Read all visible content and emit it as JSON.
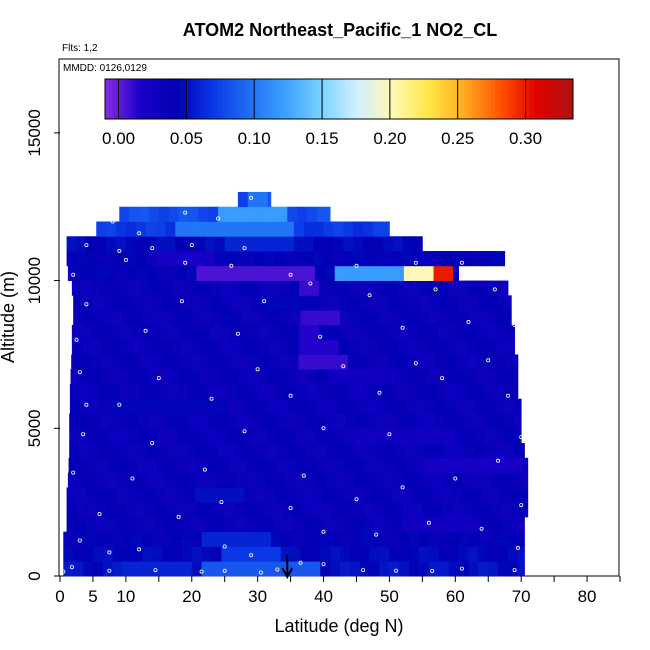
{
  "chart_data": {
    "type": "heatmap",
    "title": "ATOM2 Northeast_Pacific_1 NO2_CL",
    "flights_label": "Flts: 1,2",
    "dates_label": "MMDD: 0126,0129",
    "xlabel": "Latitude (deg N)",
    "ylabel": "Altitude (m)",
    "xlim": [
      0,
      85
    ],
    "ylim": [
      0,
      17500
    ],
    "x_ticks": [
      0,
      5,
      10,
      20,
      30,
      40,
      50,
      60,
      70,
      80
    ],
    "y_ticks": [
      0,
      5000,
      10000,
      15000
    ],
    "colorbar": {
      "min": -0.01,
      "max": 0.335,
      "ticks": [
        0.0,
        0.05,
        0.1,
        0.15,
        0.2,
        0.25,
        0.3
      ],
      "tick_labels": [
        "0.00",
        "0.05",
        "0.10",
        "0.15",
        "0.20",
        "0.25",
        "0.30"
      ],
      "colors": [
        "#8a2be2",
        "#1a00c8",
        "#0000b4",
        "#0a37e6",
        "#1e6ef5",
        "#3ca0ff",
        "#78d2ff",
        "#d2f0ff",
        "#fff8b4",
        "#ffe646",
        "#ffaa1e",
        "#ff5000",
        "#e10000",
        "#aa1414"
      ]
    },
    "grid": false,
    "arrow_latitude": 34.5,
    "layers": [
      {
        "y0": 0,
        "y1": 500,
        "lat0": 0.5,
        "lat1": 70.5,
        "base": 0.05,
        "hot": [
          [
            22,
            40,
            0.085
          ],
          [
            10,
            20,
            0.06
          ]
        ]
      },
      {
        "y0": 500,
        "y1": 1000,
        "lat0": 0.5,
        "lat1": 70.5,
        "base": 0.045,
        "hot": [
          [
            24,
            34,
            0.07
          ]
        ]
      },
      {
        "y0": 1000,
        "y1": 1500,
        "lat0": 0.5,
        "lat1": 70.5,
        "base": 0.04,
        "hot": [
          [
            22,
            32,
            0.06
          ]
        ]
      },
      {
        "y0": 1500,
        "y1": 2000,
        "lat0": 1,
        "lat1": 70.5,
        "base": 0.035,
        "hot": [
          [
            52,
            62,
            0.025
          ]
        ]
      },
      {
        "y0": 2000,
        "y1": 2500,
        "lat0": 1,
        "lat1": 71,
        "base": 0.035,
        "hot": []
      },
      {
        "y0": 2500,
        "y1": 3000,
        "lat0": 1,
        "lat1": 71,
        "base": 0.035,
        "hot": [
          [
            20,
            28,
            0.05
          ]
        ]
      },
      {
        "y0": 3000,
        "y1": 3500,
        "lat0": 1.2,
        "lat1": 71,
        "base": 0.035,
        "hot": []
      },
      {
        "y0": 3500,
        "y1": 4000,
        "lat0": 1.3,
        "lat1": 71,
        "base": 0.035,
        "hot": [
          [
            55,
            70,
            0.02
          ]
        ]
      },
      {
        "y0": 4000,
        "y1": 4500,
        "lat0": 1.4,
        "lat1": 70.5,
        "base": 0.035,
        "hot": []
      },
      {
        "y0": 4500,
        "y1": 5000,
        "lat0": 1.4,
        "lat1": 70,
        "base": 0.035,
        "hot": [
          [
            45,
            60,
            0.025
          ]
        ]
      },
      {
        "y0": 5000,
        "y1": 5500,
        "lat0": 1.4,
        "lat1": 70,
        "base": 0.035,
        "hot": []
      },
      {
        "y0": 5500,
        "y1": 6000,
        "lat0": 1.5,
        "lat1": 70,
        "base": 0.035,
        "hot": [
          [
            8,
            26,
            0.045
          ]
        ]
      },
      {
        "y0": 6000,
        "y1": 6500,
        "lat0": 1.5,
        "lat1": 69.5,
        "base": 0.035,
        "hot": []
      },
      {
        "y0": 6500,
        "y1": 7000,
        "lat0": 1.6,
        "lat1": 69.5,
        "base": 0.035,
        "hot": [
          [
            40,
            50,
            0.025
          ]
        ]
      },
      {
        "y0": 7000,
        "y1": 7500,
        "lat0": 1.7,
        "lat1": 69.5,
        "base": 0.035,
        "hot": [
          [
            36,
            44,
            0.01
          ]
        ]
      },
      {
        "y0": 7500,
        "y1": 8000,
        "lat0": 1.8,
        "lat1": 69,
        "base": 0.035,
        "hot": [
          [
            37,
            42,
            0.015
          ]
        ]
      },
      {
        "y0": 8000,
        "y1": 8500,
        "lat0": 1.8,
        "lat1": 69,
        "base": 0.035,
        "hot": [
          [
            36,
            40,
            0.015
          ]
        ]
      },
      {
        "y0": 8500,
        "y1": 9000,
        "lat0": 2,
        "lat1": 68.5,
        "base": 0.035,
        "hot": [
          [
            36,
            42,
            0.01
          ]
        ]
      },
      {
        "y0": 9000,
        "y1": 9500,
        "lat0": 2,
        "lat1": 68.5,
        "base": 0.035,
        "hot": [
          [
            30,
            36,
            0.045
          ]
        ]
      },
      {
        "y0": 9500,
        "y1": 10000,
        "lat0": 1.8,
        "lat1": 68,
        "base": 0.035,
        "hot": [
          [
            36,
            40,
            0.01
          ]
        ]
      },
      {
        "y0": 10000,
        "y1": 10500,
        "lat0": 1.2,
        "lat1": 60.5,
        "base": 0.04,
        "hot": [
          [
            20,
            38,
            0.005
          ],
          [
            42,
            52,
            0.12
          ],
          [
            52,
            56,
            0.2
          ],
          [
            56,
            60,
            0.3
          ]
        ]
      },
      {
        "y0": 10500,
        "y1": 11000,
        "lat0": 1,
        "lat1": 67.5,
        "base": 0.04,
        "hot": [
          [
            14,
            24,
            0.02
          ]
        ]
      },
      {
        "y0": 11000,
        "y1": 11500,
        "lat0": 1,
        "lat1": 55,
        "base": 0.045,
        "hot": [
          [
            25,
            35,
            0.06
          ]
        ]
      },
      {
        "y0": 11500,
        "y1": 12000,
        "lat0": 5.5,
        "lat1": 50,
        "base": 0.07,
        "hot": [
          [
            18,
            35,
            0.1
          ]
        ]
      },
      {
        "y0": 12000,
        "y1": 12500,
        "lat0": 9,
        "lat1": 41,
        "base": 0.08,
        "hot": [
          [
            24,
            34,
            0.12
          ]
        ]
      },
      {
        "y0": 12500,
        "y1": 13000,
        "lat0": 27,
        "lat1": 32,
        "base": 0.08,
        "hot": [
          [
            28,
            31,
            0.1
          ]
        ]
      }
    ],
    "points": [
      {
        "lat": 0.5,
        "alt": 150
      },
      {
        "lat": 1.8,
        "alt": 300
      },
      {
        "lat": 7.5,
        "alt": 180
      },
      {
        "lat": 7.5,
        "alt": 800
      },
      {
        "lat": 14.5,
        "alt": 200
      },
      {
        "lat": 21.5,
        "alt": 150
      },
      {
        "lat": 25,
        "alt": 180
      },
      {
        "lat": 30.5,
        "alt": 120
      },
      {
        "lat": 33,
        "alt": 220
      },
      {
        "lat": 36.5,
        "alt": 450
      },
      {
        "lat": 40,
        "alt": 400
      },
      {
        "lat": 46,
        "alt": 200
      },
      {
        "lat": 51,
        "alt": 180
      },
      {
        "lat": 56.5,
        "alt": 170
      },
      {
        "lat": 61,
        "alt": 250
      },
      {
        "lat": 69,
        "alt": 200
      },
      {
        "lat": 69.5,
        "alt": 950
      },
      {
        "lat": 3,
        "alt": 1200
      },
      {
        "lat": 12,
        "alt": 900
      },
      {
        "lat": 25,
        "alt": 1000
      },
      {
        "lat": 29,
        "alt": 700
      },
      {
        "lat": 40,
        "alt": 1500
      },
      {
        "lat": 48,
        "alt": 1400
      },
      {
        "lat": 56,
        "alt": 1800
      },
      {
        "lat": 64,
        "alt": 1600
      },
      {
        "lat": 6,
        "alt": 2100
      },
      {
        "lat": 18,
        "alt": 2000
      },
      {
        "lat": 24.5,
        "alt": 2500
      },
      {
        "lat": 35,
        "alt": 2300
      },
      {
        "lat": 45,
        "alt": 2600
      },
      {
        "lat": 52,
        "alt": 3000
      },
      {
        "lat": 70,
        "alt": 2400
      },
      {
        "lat": 2,
        "alt": 3500
      },
      {
        "lat": 11,
        "alt": 3300
      },
      {
        "lat": 22,
        "alt": 3600
      },
      {
        "lat": 37,
        "alt": 3400
      },
      {
        "lat": 60,
        "alt": 3300
      },
      {
        "lat": 66.5,
        "alt": 3900
      },
      {
        "lat": 3.5,
        "alt": 4800
      },
      {
        "lat": 14,
        "alt": 4500
      },
      {
        "lat": 28,
        "alt": 4900
      },
      {
        "lat": 40,
        "alt": 5000
      },
      {
        "lat": 50,
        "alt": 4800
      },
      {
        "lat": 70,
        "alt": 4700
      },
      {
        "lat": 4,
        "alt": 5800
      },
      {
        "lat": 9,
        "alt": 5800
      },
      {
        "lat": 23,
        "alt": 6000
      },
      {
        "lat": 35,
        "alt": 6100
      },
      {
        "lat": 48.5,
        "alt": 6200
      },
      {
        "lat": 58,
        "alt": 6700
      },
      {
        "lat": 68,
        "alt": 6100
      },
      {
        "lat": 3,
        "alt": 6900
      },
      {
        "lat": 15,
        "alt": 6700
      },
      {
        "lat": 30,
        "alt": 7000
      },
      {
        "lat": 43,
        "alt": 7100
      },
      {
        "lat": 54,
        "alt": 7200
      },
      {
        "lat": 65,
        "alt": 7300
      },
      {
        "lat": 2.5,
        "alt": 8000
      },
      {
        "lat": 13,
        "alt": 8300
      },
      {
        "lat": 27,
        "alt": 8200
      },
      {
        "lat": 39.5,
        "alt": 8100
      },
      {
        "lat": 52,
        "alt": 8400
      },
      {
        "lat": 62,
        "alt": 8600
      },
      {
        "lat": 69,
        "alt": 8500
      },
      {
        "lat": 4,
        "alt": 9200
      },
      {
        "lat": 18.5,
        "alt": 9300
      },
      {
        "lat": 31,
        "alt": 9300
      },
      {
        "lat": 38,
        "alt": 9900
      },
      {
        "lat": 47,
        "alt": 9500
      },
      {
        "lat": 57,
        "alt": 9700
      },
      {
        "lat": 66,
        "alt": 9700
      },
      {
        "lat": 2,
        "alt": 10200
      },
      {
        "lat": 10,
        "alt": 10700
      },
      {
        "lat": 19,
        "alt": 10600
      },
      {
        "lat": 26,
        "alt": 10500
      },
      {
        "lat": 35,
        "alt": 10200
      },
      {
        "lat": 45,
        "alt": 10500
      },
      {
        "lat": 54,
        "alt": 10600
      },
      {
        "lat": 61,
        "alt": 10600
      },
      {
        "lat": 68,
        "alt": 10700
      },
      {
        "lat": 4,
        "alt": 11200
      },
      {
        "lat": 9,
        "alt": 11000
      },
      {
        "lat": 14,
        "alt": 11100
      },
      {
        "lat": 20,
        "alt": 11200
      },
      {
        "lat": 28,
        "alt": 11100
      },
      {
        "lat": 8,
        "alt": 12000
      },
      {
        "lat": 12,
        "alt": 11600
      },
      {
        "lat": 19,
        "alt": 12300
      },
      {
        "lat": 24,
        "alt": 12100
      },
      {
        "lat": 29,
        "alt": 12800
      }
    ]
  }
}
